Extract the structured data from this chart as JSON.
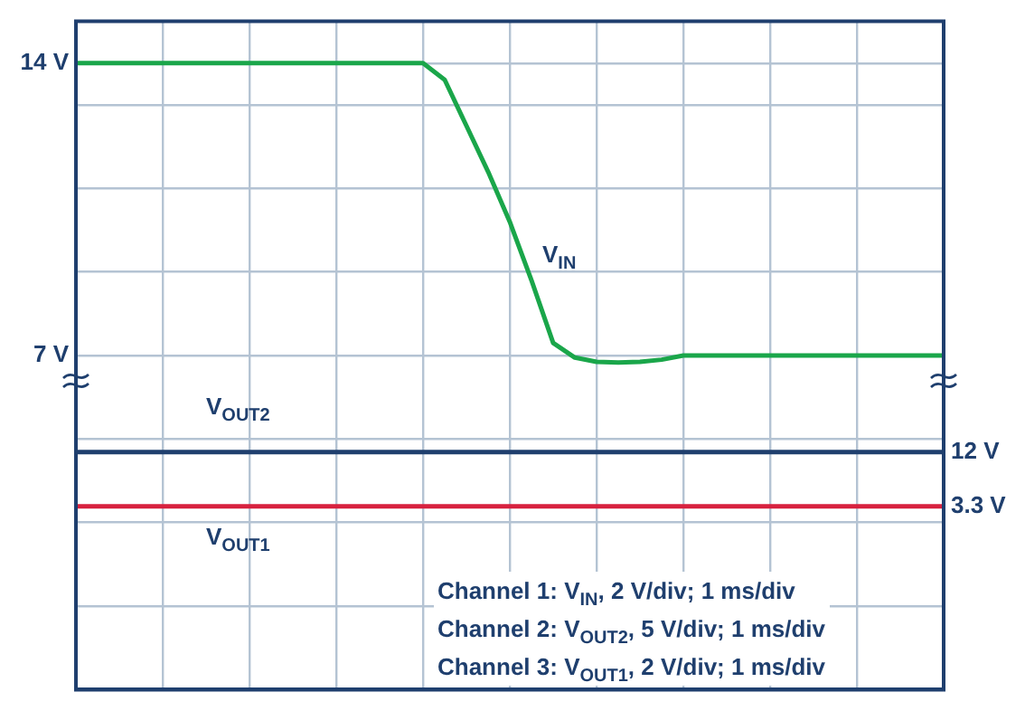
{
  "chart_data": {
    "type": "line",
    "categories": [
      null,
      null,
      null,
      null,
      null,
      null,
      null,
      null,
      null,
      null,
      null,
      null,
      null,
      null,
      null,
      null,
      null,
      null,
      null,
      null,
      null,
      null,
      null,
      null,
      null,
      null,
      null,
      null,
      null,
      null,
      null,
      null,
      null,
      null,
      null,
      null,
      null,
      null,
      null,
      null,
      null
    ],
    "series": [
      {
        "name": "V$_{IN}$",
        "color": "#1aa64a",
        "values": [
          14,
          14,
          14,
          14,
          14,
          14,
          14,
          14,
          14,
          14,
          14,
          14,
          14,
          14,
          14,
          14,
          14,
          13.6,
          12.5,
          11.4,
          10.2,
          8.8,
          7.3,
          6.95,
          6.85,
          6.83,
          6.85,
          6.9,
          7,
          7,
          7,
          7,
          7,
          7,
          7,
          7,
          7,
          7,
          7,
          7,
          7
        ]
      },
      {
        "name": "V$_{OUT2}$",
        "color": "#1f3f6e",
        "axis": "y2",
        "values": [
          12,
          12,
          12,
          12,
          12,
          12,
          12,
          12,
          12,
          12,
          12,
          12,
          12,
          12,
          12,
          12,
          12,
          12,
          12,
          12,
          12,
          12,
          12,
          12,
          12,
          12,
          12,
          12,
          12,
          12,
          12,
          12,
          12,
          12,
          12,
          12,
          12,
          12,
          12,
          12,
          12
        ]
      },
      {
        "name": "V$_{OUT1}$",
        "color": "#d7213f",
        "axis": "y2",
        "values": [
          3.3,
          3.3,
          3.3,
          3.3,
          3.3,
          3.3,
          3.3,
          3.3,
          3.3,
          3.3,
          3.3,
          3.3,
          3.3,
          3.3,
          3.3,
          3.3,
          3.3,
          3.3,
          3.3,
          3.3,
          3.3,
          3.3,
          3.3,
          3.3,
          3.3,
          3.3,
          3.3,
          3.3,
          3.3,
          3.3,
          3.3,
          3.3,
          3.3,
          3.3,
          3.3,
          3.3,
          3.3,
          3.3,
          3.3,
          3.3,
          3.3
        ]
      }
    ],
    "ylim": [
      -1,
      15
    ],
    "yticks": [
      {
        "value": -1,
        "label": null
      },
      {
        "value": 1,
        "label": null
      },
      {
        "value": 3,
        "label": null
      },
      {
        "value": 5,
        "label": null
      },
      {
        "value": 7,
        "label": "7 V"
      },
      {
        "value": 9,
        "label": null
      },
      {
        "value": 11,
        "label": null
      },
      {
        "value": 13,
        "label": null
      },
      {
        "value": 14,
        "label": "14 V"
      },
      {
        "value": 15,
        "label": null
      }
    ],
    "y2lim": [
      -26.2,
      81.3
    ],
    "y2ticks": [
      {
        "value": 3.3,
        "label": "3.3 V"
      },
      {
        "value": 12,
        "label": "12 V"
      }
    ],
    "tick_labels": "y",
    "grid": true,
    "legend": false,
    "marker": "none",
    "line_style": "solid",
    "annotations": [
      "Channel 1: V$_{IN}$, 2 V/div; 1 ms/div",
      "Channel 2: V$_{OUT2}$, 5 V/div; 1 ms/div",
      "Channel 3: V$_{OUT1}$, 2 V/div; 1 ms/div"
    ]
  }
}
